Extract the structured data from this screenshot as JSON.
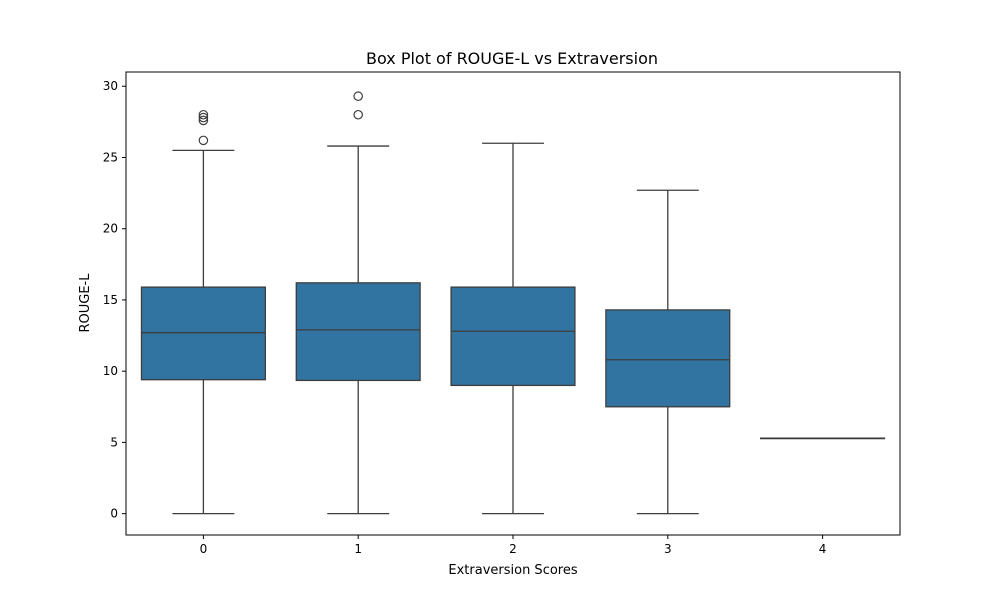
{
  "chart_data": {
    "type": "box",
    "title": "Box Plot of ROUGE-L vs Extraversion",
    "xlabel": "Extraversion Scores",
    "ylabel": "ROUGE-L",
    "categories": [
      "0",
      "1",
      "2",
      "3",
      "4"
    ],
    "ylim": [
      -1.5,
      31.0
    ],
    "yticks": [
      0,
      5,
      10,
      15,
      20,
      25,
      30
    ],
    "grid": false,
    "box_color": "#3274a1",
    "boxes": [
      {
        "category": "0",
        "whisker_low": 0.0,
        "q1": 9.4,
        "median": 12.7,
        "q3": 15.9,
        "whisker_high": 25.5,
        "outliers": [
          26.2,
          27.6,
          27.8,
          28.0
        ]
      },
      {
        "category": "1",
        "whisker_low": 0.0,
        "q1": 9.35,
        "median": 12.9,
        "q3": 16.2,
        "whisker_high": 25.8,
        "outliers": [
          28.0,
          29.3
        ]
      },
      {
        "category": "2",
        "whisker_low": 0.0,
        "q1": 9.0,
        "median": 12.8,
        "q3": 15.9,
        "whisker_high": 26.0,
        "outliers": []
      },
      {
        "category": "3",
        "whisker_low": 0.0,
        "q1": 7.5,
        "median": 10.8,
        "q3": 14.3,
        "whisker_high": 22.7,
        "outliers": []
      },
      {
        "category": "4",
        "whisker_low": 5.3,
        "q1": 5.3,
        "median": 5.3,
        "q3": 5.3,
        "whisker_high": 5.3,
        "outliers": []
      }
    ]
  }
}
